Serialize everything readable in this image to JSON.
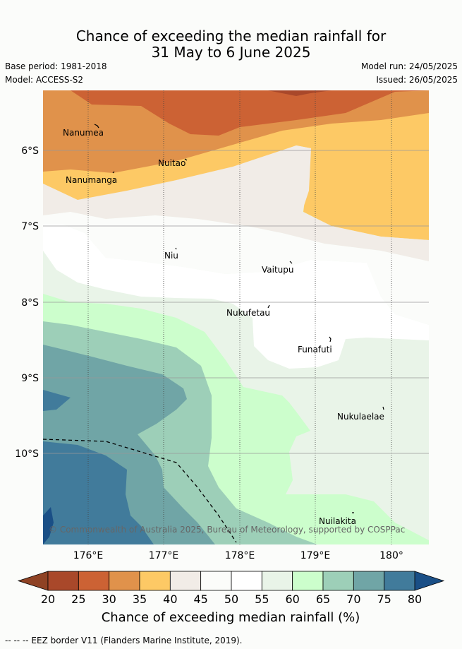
{
  "title_line1": "Chance of exceeding the median rainfall for",
  "title_line2": "31 May to 6 June 2025",
  "base_period": "Base period: 1981-2018",
  "model": "Model: ACCESS-S2",
  "model_run": "Model run: 24/05/2025",
  "issued": "Issued: 26/05/2025",
  "copyright": "© Commonwealth of Australia 2025, Bureau of Meteorology, supported by COSPPac",
  "lat_ticks": [
    "6°S",
    "7°S",
    "8°S",
    "9°S",
    "10°S"
  ],
  "lon_ticks": [
    "176°E",
    "177°E",
    "178°E",
    "179°E",
    "180°"
  ],
  "places": [
    {
      "name": "Nanumea"
    },
    {
      "name": "Nuitao"
    },
    {
      "name": "Nanumanga"
    },
    {
      "name": "Niu"
    },
    {
      "name": "Vaitupu"
    },
    {
      "name": "Nukufetau"
    },
    {
      "name": "Funafuti"
    },
    {
      "name": "Nukulaelae"
    },
    {
      "name": "Nuilakita"
    }
  ],
  "colorbar": {
    "label": "Chance of exceeding median rainfall (%)",
    "ticks": [
      "20",
      "25",
      "30",
      "35",
      "40",
      "45",
      "50",
      "55",
      "60",
      "65",
      "70",
      "75",
      "80"
    ],
    "colors": [
      "#a9482a",
      "#cc6234",
      "#e0924b",
      "#fdc965",
      "#f1ece7",
      "#fbfcfa",
      "#ffffff",
      "#e9f4e8",
      "#ccfecc",
      "#9dcfb8",
      "#70a5a6",
      "#417b9b",
      "#1a4f86",
      "#8f4224"
    ]
  },
  "footer": "-- -- -- EEZ border V11 (Flanders Marine Institute, 2019)."
}
